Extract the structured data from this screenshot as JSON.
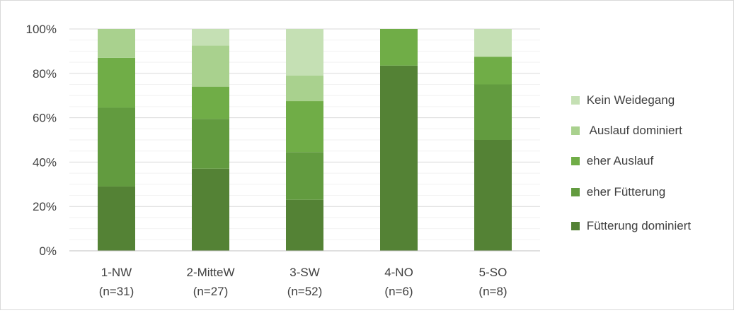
{
  "chart_data": {
    "type": "bar",
    "stacked": true,
    "normalized": true,
    "categories": [
      "1-NW",
      "2-MitteW",
      "3-SW",
      "4-NO",
      "5-SO"
    ],
    "category_sublabels": [
      "(n=31)",
      "(n=27)",
      "(n=52)",
      "(n=6)",
      "(n=8)"
    ],
    "series": [
      {
        "name": "Fütterung dominiert",
        "color": "#548235",
        "values": [
          29,
          37,
          23,
          83.5,
          50
        ]
      },
      {
        "name": "eher Fütterung",
        "color": "#629b3f",
        "values": [
          35.5,
          22.5,
          21.5,
          0,
          25
        ]
      },
      {
        "name": "eher Auslauf",
        "color": "#70ad47",
        "values": [
          22.5,
          14.5,
          23,
          16.5,
          12.5
        ]
      },
      {
        "name": "Auslauf dominiert",
        "color": "#a9d18e",
        "values": [
          13,
          18.5,
          11.5,
          0,
          0
        ]
      },
      {
        "name": "Kein Weidegang",
        "color": "#c5e0b4",
        "values": [
          0,
          7.5,
          21,
          0,
          12.5
        ]
      }
    ],
    "yticks": [
      "0%",
      "20%",
      "40%",
      "60%",
      "80%",
      "100%"
    ],
    "ylim": [
      0,
      100
    ],
    "grid": true,
    "legend_position": "right",
    "legend_order": [
      "Kein Weidegang",
      "Auslauf dominiert",
      "eher Auslauf",
      "eher Fütterung",
      "Fütterung dominiert"
    ],
    "legend_labels": [
      " Kein Weidegang",
      "  Auslauf dominiert",
      " eher Auslauf",
      " eher Fütterung",
      " Fütterung dominiert"
    ],
    "xlabel": "",
    "ylabel": "",
    "title": ""
  }
}
